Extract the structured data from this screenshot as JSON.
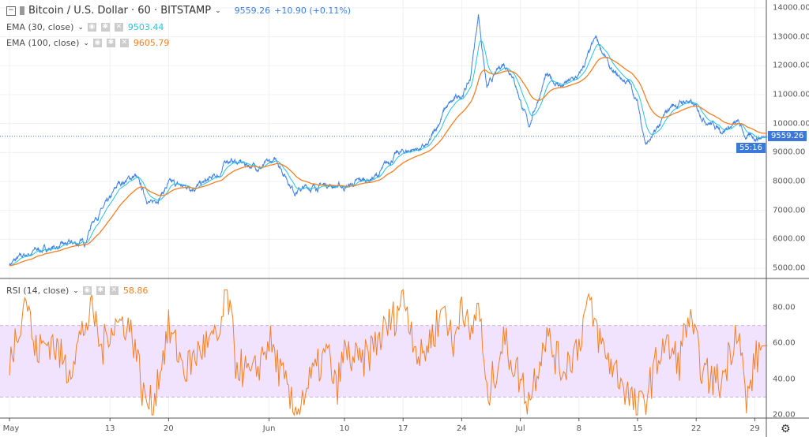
{
  "header": {
    "symbol": "Bitcoin / U.S. Dollar · 60 · BITSTAMP",
    "last": "9559.26",
    "change": "+10.90 (+0.11%)"
  },
  "indicators": [
    {
      "label": "EMA (30, close)",
      "value": "9503.44",
      "color": "#22c5e0"
    },
    {
      "label": "EMA (100, close)",
      "value": "9605.79",
      "color": "#f57f23"
    }
  ],
  "rsi": {
    "label": "RSI (14, close)",
    "value": "58.86",
    "color": "#f57f23"
  },
  "price_axis": {
    "ticks": [
      "14000.00",
      "13000.00",
      "12000.00",
      "11000.00",
      "10000.00",
      "9000.00",
      "8000.00",
      "7000.00",
      "6000.00",
      "5000.00"
    ],
    "last_tag": "9559.26",
    "countdown": "55:16"
  },
  "rsi_axis": {
    "ticks": [
      "80.00",
      "60.00",
      "40.00",
      "20.00"
    ]
  },
  "time_axis": {
    "ticks": [
      "May",
      "13",
      "20",
      "Jun",
      "10",
      "17",
      "24",
      "Jul",
      "8",
      "15",
      "22",
      "29"
    ]
  },
  "icons": {
    "settings": "gear-icon",
    "visibility": "eye-icon",
    "remove": "close-icon"
  },
  "chart_data": [
    {
      "type": "line",
      "series_color": "#3d7ee8",
      "ylim": [
        5000,
        14000
      ],
      "x_day_of": "May 1 – Jul 30",
      "points": [
        [
          "May 1",
          5150
        ],
        [
          "May 4",
          5600
        ],
        [
          "May 7",
          5750
        ],
        [
          "May 10",
          5900
        ],
        [
          "May 11",
          6700
        ],
        [
          "May 13",
          7300
        ],
        [
          "May 14",
          7900
        ],
        [
          "May 16",
          8200
        ],
        [
          "May 17",
          7600
        ],
        [
          "May 18",
          7200
        ],
        [
          "May 20",
          7900
        ],
        [
          "May 22",
          7800
        ],
        [
          "May 24",
          7900
        ],
        [
          "May 26",
          8200
        ],
        [
          "May 27",
          8750
        ],
        [
          "May 29",
          8600
        ],
        [
          "May 31",
          8500
        ],
        [
          "Jun 2",
          8700
        ],
        [
          "Jun 4",
          7700
        ],
        [
          "Jun 6",
          7800
        ],
        [
          "Jun 8",
          7900
        ],
        [
          "Jun 10",
          7800
        ],
        [
          "Jun 12",
          8000
        ],
        [
          "Jun 14",
          8200
        ],
        [
          "Jun 16",
          8900
        ],
        [
          "Jun 18",
          9100
        ],
        [
          "Jun 20",
          9200
        ],
        [
          "Jun 22",
          10500
        ],
        [
          "Jun 24",
          11000
        ],
        [
          "Jun 25",
          11500
        ],
        [
          "Jun 26",
          13800
        ],
        [
          "Jun 27",
          11200
        ],
        [
          "Jun 29",
          12100
        ],
        [
          "Jun 30",
          11800
        ],
        [
          "Jul 2",
          9900
        ],
        [
          "Jul 4",
          11600
        ],
        [
          "Jul 6",
          11300
        ],
        [
          "Jul 8",
          11600
        ],
        [
          "Jul 10",
          12900
        ],
        [
          "Jul 11",
          12400
        ],
        [
          "Jul 12",
          11700
        ],
        [
          "Jul 14",
          11400
        ],
        [
          "Jul 15",
          10700
        ],
        [
          "Jul 16",
          9300
        ],
        [
          "Jul 17",
          9600
        ],
        [
          "Jul 19",
          10600
        ],
        [
          "Jul 21",
          10800
        ],
        [
          "Jul 23",
          10200
        ],
        [
          "Jul 25",
          9800
        ],
        [
          "Jul 27",
          10000
        ],
        [
          "Jul 28",
          9500
        ],
        [
          "Jul 30",
          9559.26
        ]
      ]
    },
    {
      "type": "line",
      "name": "RSI",
      "ylim": [
        20,
        90
      ],
      "band": [
        30,
        70
      ],
      "points": [
        [
          "May 1",
          50
        ],
        [
          "May 3",
          88
        ],
        [
          "May 4",
          55
        ],
        [
          "May 6",
          62
        ],
        [
          "May 8",
          45
        ],
        [
          "May 10",
          70
        ],
        [
          "May 11",
          78
        ],
        [
          "May 12",
          55
        ],
        [
          "May 13",
          70
        ],
        [
          "May 15",
          72
        ],
        [
          "May 16",
          60
        ],
        [
          "May 17",
          30
        ],
        [
          "May 18",
          25
        ],
        [
          "May 20",
          68
        ],
        [
          "May 22",
          45
        ],
        [
          "May 24",
          58
        ],
        [
          "May 26",
          62
        ],
        [
          "May 27",
          90
        ],
        [
          "May 28",
          50
        ],
        [
          "May 30",
          40
        ],
        [
          "Jun 1",
          62
        ],
        [
          "Jun 3",
          35
        ],
        [
          "Jun 4",
          20
        ],
        [
          "Jun 6",
          40
        ],
        [
          "Jun 8",
          55
        ],
        [
          "Jun 9",
          33
        ],
        [
          "Jun 10",
          55
        ],
        [
          "Jun 12",
          48
        ],
        [
          "Jun 14",
          62
        ],
        [
          "Jun 16",
          75
        ],
        [
          "Jun 17",
          88
        ],
        [
          "Jun 19",
          50
        ],
        [
          "Jun 21",
          70
        ],
        [
          "Jun 22",
          82
        ],
        [
          "Jun 23",
          55
        ],
        [
          "Jun 24",
          88
        ],
        [
          "Jun 25",
          60
        ],
        [
          "Jun 26",
          85
        ],
        [
          "Jun 27",
          28
        ],
        [
          "Jun 29",
          62
        ],
        [
          "Jul 1",
          40
        ],
        [
          "Jul 2",
          28
        ],
        [
          "Jul 4",
          65
        ],
        [
          "Jul 6",
          45
        ],
        [
          "Jul 8",
          60
        ],
        [
          "Jul 9",
          83
        ],
        [
          "Jul 11",
          55
        ],
        [
          "Jul 13",
          40
        ],
        [
          "Jul 15",
          22
        ],
        [
          "Jul 16",
          30
        ],
        [
          "Jul 18",
          60
        ],
        [
          "Jul 20",
          50
        ],
        [
          "Jul 21",
          75
        ],
        [
          "Jul 23",
          42
        ],
        [
          "Jul 25",
          38
        ],
        [
          "Jul 26",
          55
        ],
        [
          "Jul 27",
          72
        ],
        [
          "Jul 28",
          25
        ],
        [
          "Jul 29",
          50
        ],
        [
          "Jul 30",
          58.86
        ]
      ]
    }
  ]
}
